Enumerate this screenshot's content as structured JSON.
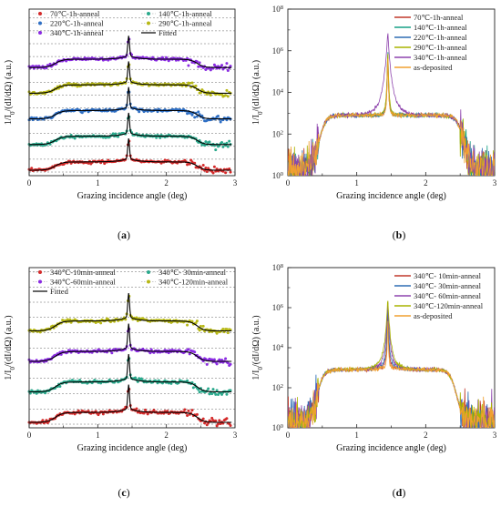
{
  "figure": {
    "panel_labels": [
      {
        "open": "(",
        "letter": "a",
        "close": ")"
      },
      {
        "open": "(",
        "letter": "b",
        "close": ")"
      },
      {
        "open": "(",
        "letter": "c",
        "close": ")"
      },
      {
        "open": "(",
        "letter": "d",
        "close": ")"
      }
    ]
  },
  "chart_data": [
    {
      "type": "scatter",
      "panel": "a",
      "scale": "linear-offset",
      "xlabel": "Grazing incidence angle (deg)",
      "ylabel": "1/I0/(dI/dΩ) (a.u.)",
      "xlim": [
        0,
        3
      ],
      "xticks": [
        0,
        1,
        2,
        3
      ],
      "grid": "horizontal-dashed",
      "legend_position": "top",
      "series": [
        {
          "name": "70℃-1h-anneal",
          "color": "#d42a2a",
          "offset": 0
        },
        {
          "name": "140℃-1h-anneal",
          "color": "#2aa98c",
          "offset": 1
        },
        {
          "name": "220℃-1h-anneal",
          "color": "#2f6fc4",
          "offset": 2
        },
        {
          "name": "290℃-1h-anneal",
          "color": "#b7b815",
          "offset": 3
        },
        {
          "name": "340℃-1h-anneal",
          "color": "#8a2be2",
          "offset": 4
        },
        {
          "name": "Fitted",
          "color": "#000000",
          "style": "line"
        }
      ]
    },
    {
      "type": "line",
      "panel": "b",
      "scale": "log",
      "xlabel": "Grazing incidence angle (deg)",
      "ylabel": "1/I0/(dI/dΩ) (a.u.)",
      "xlim": [
        0,
        3
      ],
      "ylim": [
        1,
        100000000
      ],
      "xticks": [
        0,
        1,
        2,
        3
      ],
      "yticks": [
        "10^0",
        "10^2",
        "10^4",
        "10^6",
        "10^8"
      ],
      "legend_position": "top-right",
      "series": [
        {
          "name": "70℃-1h-anneal",
          "color": "#c0392b"
        },
        {
          "name": "140℃-1h-anneal",
          "color": "#16a085"
        },
        {
          "name": "220℃-1h-anneal",
          "color": "#2e6db4"
        },
        {
          "name": "290℃-1h-anneal",
          "color": "#a8b400"
        },
        {
          "name": "340℃-1h-anneal",
          "color": "#8e44ad"
        },
        {
          "name": "as-deposited",
          "color": "#f0a030"
        }
      ]
    },
    {
      "type": "scatter",
      "panel": "c",
      "scale": "linear-offset",
      "xlabel": "Grazing incidence angle (deg)",
      "ylabel": "1/I0/(dI/dΩ) (a.u.)",
      "xlim": [
        0,
        3
      ],
      "xticks": [
        0,
        1,
        2,
        3
      ],
      "grid": "horizontal-dashed",
      "legend_position": "top",
      "series": [
        {
          "name": "340℃-10min-anneal",
          "color": "#d42a2a",
          "offset": 0
        },
        {
          "name": "340℃- 30min-anneal",
          "color": "#2aa98c",
          "offset": 1
        },
        {
          "name": "340℃-60min-anneal",
          "color": "#8a2be2",
          "offset": 2
        },
        {
          "name": "340℃-120min-anneal",
          "color": "#b7b815",
          "offset": 3
        },
        {
          "name": "Fitted",
          "color": "#000000",
          "style": "line"
        }
      ]
    },
    {
      "type": "line",
      "panel": "d",
      "scale": "log",
      "xlabel": "Grazing incidence angle (deg)",
      "ylabel": "1/I0/(dI/dΩ) (a.u.)",
      "xlim": [
        0,
        3
      ],
      "ylim": [
        1,
        100000000
      ],
      "xticks": [
        0,
        1,
        2,
        3
      ],
      "yticks": [
        "10^0",
        "10^2",
        "10^4",
        "10^6",
        "10^8"
      ],
      "legend_position": "top-right",
      "series": [
        {
          "name": "340℃- 10min-anneal",
          "color": "#c0392b"
        },
        {
          "name": "340℃- 30min-anneal",
          "color": "#2e6db4"
        },
        {
          "name": "340℃- 60min-anneal",
          "color": "#8e44ad"
        },
        {
          "name": "340℃-120min-anneal",
          "color": "#a8b400"
        },
        {
          "name": "as-deposited",
          "color": "#f0a030"
        }
      ]
    }
  ]
}
